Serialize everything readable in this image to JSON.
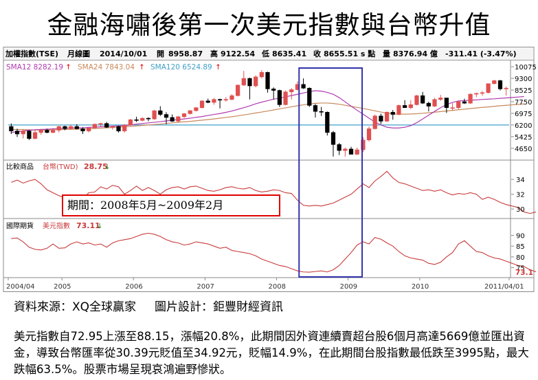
{
  "title": "金融海嘯後第一次美元指數與台幣升值",
  "header": {
    "name": "加權指數(TSE)",
    "period": "月線圖",
    "date": "2014/10/01",
    "open_label": "開",
    "open": "8958.87",
    "high_label": "高",
    "high": "9122.54",
    "low_label": "低",
    "low": "8635.41",
    "close_label": "收",
    "close": "8655.51 s 點",
    "vol_label": "量",
    "volume": "8376.94 億",
    "change": "-311.41 (-3.47%)"
  },
  "legend": {
    "sma12": "SMA12 8282.19",
    "sma24": "SMA24 7843.04",
    "sma120": "SMA120 6524.89"
  },
  "panel2": {
    "label": "比較商品",
    "name": "台幣(TWD)",
    "value": "28.75"
  },
  "panel3": {
    "label": "國際期貨",
    "name": "美元指數",
    "value": "73.11",
    "last": "73.1"
  },
  "period_label": "期間：2008年5月~2009年2月",
  "source_line": "資料來源：XQ全球贏家     圖片設計：鉅豐財經資訊",
  "body_text": "美元指數自72.95上漲至88.15，漲幅20.8%，此期間因外資連續賣超台股6個月高達5669億並匯出資金，導致台幣匯率從30.39元貶值至34.92元，貶幅14.9%，在此期間台股指數最低跌至3995點，最大跌幅63.5%。股票市場呈現哀鴻遍野慘狀。",
  "colors": {
    "up": "#e05050",
    "down": "#000000",
    "sma12": "#b03ab0",
    "sma24": "#c8885a",
    "sma120": "#3fa0c8",
    "line": "#c83a3a",
    "highlight": "#3333aa",
    "period_border": "#e00000"
  },
  "chart_data": [
    {
      "type": "candlestick",
      "title": "加權指數(TSE) 月線圖",
      "x_ticks": [
        "2004/04",
        "2005",
        "2006",
        "2007",
        "2008",
        "2009",
        "2010",
        "2011/04/01"
      ],
      "y_ticks": [
        10075,
        9300,
        8525,
        7750,
        6975,
        6200,
        5425,
        4650
      ],
      "ylim": [
        4000,
        10400
      ],
      "xlim_months": [
        "2004-04",
        "2011-04"
      ],
      "ohlc": [
        [
          "2004-04",
          6100,
          6300,
          5600,
          5800
        ],
        [
          "2004-05",
          5800,
          5950,
          5400,
          5600
        ],
        [
          "2004-06",
          5600,
          5900,
          5300,
          5800
        ],
        [
          "2004-07",
          5800,
          5850,
          5200,
          5300
        ],
        [
          "2004-08",
          5300,
          5900,
          5250,
          5700
        ],
        [
          "2004-09",
          5700,
          5950,
          5550,
          5850
        ],
        [
          "2004-10",
          5850,
          5950,
          5650,
          5700
        ],
        [
          "2004-11",
          5700,
          6000,
          5650,
          5850
        ],
        [
          "2004-12",
          5850,
          6150,
          5700,
          6100
        ],
        [
          "2005-01",
          6100,
          6150,
          5850,
          5950
        ],
        [
          "2005-02",
          5950,
          6200,
          5900,
          6100
        ],
        [
          "2005-03",
          6100,
          6250,
          5900,
          5950
        ],
        [
          "2005-04",
          5950,
          6050,
          5600,
          5800
        ],
        [
          "2005-05",
          5800,
          6050,
          5700,
          6000
        ],
        [
          "2005-06",
          6000,
          6300,
          5950,
          6250
        ],
        [
          "2005-07",
          6250,
          6350,
          6100,
          6300
        ],
        [
          "2005-08",
          6300,
          6400,
          6000,
          6050
        ],
        [
          "2005-09",
          6050,
          6150,
          5900,
          6100
        ],
        [
          "2005-10",
          6100,
          6150,
          5700,
          5800
        ],
        [
          "2005-11",
          5800,
          6250,
          5700,
          6200
        ],
        [
          "2005-12",
          6200,
          6600,
          6150,
          6550
        ],
        [
          "2006-01",
          6550,
          6750,
          6400,
          6500
        ],
        [
          "2006-02",
          6500,
          6700,
          6450,
          6650
        ],
        [
          "2006-03",
          6650,
          6700,
          6450,
          6600
        ],
        [
          "2006-04",
          6600,
          7200,
          6550,
          7150
        ],
        [
          "2006-05",
          7150,
          7450,
          6800,
          6900
        ],
        [
          "2006-06",
          6900,
          7050,
          6250,
          6700
        ],
        [
          "2006-07",
          6700,
          6900,
          6400,
          6450
        ],
        [
          "2006-08",
          6450,
          6800,
          6350,
          6750
        ],
        [
          "2006-09",
          6750,
          7000,
          6650,
          6950
        ],
        [
          "2006-10",
          6950,
          7200,
          6900,
          7150
        ],
        [
          "2006-11",
          7150,
          7400,
          7100,
          7350
        ],
        [
          "2006-12",
          7350,
          7850,
          7300,
          7800
        ],
        [
          "2007-01",
          7800,
          7950,
          7650,
          7700
        ],
        [
          "2007-02",
          7700,
          8000,
          7550,
          7900
        ],
        [
          "2007-03",
          7900,
          7950,
          7300,
          7850
        ],
        [
          "2007-04",
          7850,
          8050,
          7750,
          7900
        ],
        [
          "2007-05",
          7900,
          8250,
          7850,
          8150
        ],
        [
          "2007-06",
          8150,
          8900,
          8100,
          8850
        ],
        [
          "2007-07",
          8850,
          9800,
          8800,
          9300
        ],
        [
          "2007-08",
          9300,
          9350,
          7900,
          8800
        ],
        [
          "2007-09",
          8800,
          9500,
          8700,
          9400
        ],
        [
          "2007-10",
          9400,
          9850,
          9300,
          9700
        ],
        [
          "2007-11",
          9700,
          9750,
          8350,
          8600
        ],
        [
          "2007-12",
          8600,
          8700,
          7900,
          8500
        ],
        [
          "2008-01",
          8500,
          8550,
          7400,
          7550
        ],
        [
          "2008-02",
          7550,
          8500,
          7500,
          8400
        ],
        [
          "2008-03",
          8400,
          8650,
          7900,
          8550
        ],
        [
          "2008-04",
          8550,
          9100,
          8500,
          8900
        ],
        [
          "2008-05",
          8900,
          9300,
          8600,
          8650
        ],
        [
          "2008-06",
          8650,
          8700,
          7400,
          7500
        ],
        [
          "2008-07",
          7500,
          7600,
          6700,
          7100
        ],
        [
          "2008-08",
          7100,
          7400,
          6800,
          7050
        ],
        [
          "2008-09",
          7050,
          7100,
          5500,
          5700
        ],
        [
          "2008-10",
          5700,
          5800,
          4100,
          4900
        ],
        [
          "2008-11",
          4900,
          5000,
          4200,
          4500
        ],
        [
          "2008-12",
          4500,
          4700,
          4100,
          4600
        ],
        [
          "2009-01",
          4600,
          4750,
          4250,
          4250
        ],
        [
          "2009-02",
          4250,
          4700,
          4200,
          4550
        ],
        [
          "2009-03",
          4550,
          5400,
          4400,
          5200
        ],
        [
          "2009-04",
          5200,
          6100,
          5100,
          5950
        ],
        [
          "2009-05",
          5950,
          6900,
          5900,
          6800
        ],
        [
          "2009-06",
          6800,
          6950,
          6250,
          6450
        ],
        [
          "2009-07",
          6450,
          7100,
          6400,
          7050
        ],
        [
          "2009-08",
          7050,
          7200,
          6550,
          6900
        ],
        [
          "2009-09",
          6900,
          7550,
          6850,
          7500
        ],
        [
          "2009-10",
          7500,
          7850,
          7350,
          7350
        ],
        [
          "2009-11",
          7350,
          7850,
          7250,
          7550
        ],
        [
          "2009-12",
          7550,
          8200,
          7500,
          8150
        ],
        [
          "2010-01",
          8150,
          8400,
          7600,
          7650
        ],
        [
          "2010-02",
          7650,
          7750,
          7100,
          7450
        ],
        [
          "2010-03",
          7450,
          8000,
          7400,
          7900
        ],
        [
          "2010-04",
          7900,
          8200,
          7800,
          8000
        ],
        [
          "2010-05",
          8000,
          8000,
          7000,
          7350
        ],
        [
          "2010-06",
          7350,
          7650,
          7150,
          7350
        ],
        [
          "2010-07",
          7350,
          7800,
          7250,
          7750
        ],
        [
          "2010-08",
          7750,
          7950,
          7600,
          7650
        ],
        [
          "2010-09",
          7650,
          8300,
          7600,
          8250
        ],
        [
          "2010-10",
          8250,
          8350,
          8050,
          8300
        ],
        [
          "2010-11",
          8300,
          8450,
          8150,
          8350
        ],
        [
          "2010-12",
          8350,
          8950,
          8300,
          8950
        ],
        [
          "2011-01",
          8950,
          9200,
          8900,
          9150
        ],
        [
          "2011-02",
          9150,
          9200,
          8500,
          8600
        ],
        [
          "2011-03",
          8600,
          8750,
          8150,
          8650
        ]
      ],
      "sma12": [
        5700,
        5750,
        5800,
        5850,
        5880,
        5900,
        5920,
        5940,
        5960,
        5980,
        6000,
        6010,
        6020,
        6040,
        6060,
        6080,
        6100,
        6120,
        6140,
        6160,
        6200,
        6260,
        6300,
        6340,
        6380,
        6420,
        6470,
        6520,
        6560,
        6600,
        6650,
        6710,
        6760,
        6830,
        6900,
        6960,
        7040,
        7130,
        7240,
        7350,
        7470,
        7610,
        7720,
        7820,
        7910,
        7990,
        8070,
        8160,
        8240,
        8330,
        8420,
        8480,
        8450,
        8370,
        8240,
        8020,
        7740,
        7450,
        7180,
        6920,
        6650,
        6400,
        6200,
        6050,
        6000,
        6000,
        6050,
        6150,
        6350,
        6600,
        6850,
        7100,
        7350,
        7550,
        7700,
        7800,
        7820,
        7850,
        7870,
        7900,
        7920,
        7940,
        7970,
        8000,
        8030,
        8060,
        8090
      ],
      "sma24": [
        5900,
        5900,
        5890,
        5880,
        5870,
        5870,
        5870,
        5880,
        5890,
        5900,
        5910,
        5920,
        5930,
        5950,
        5970,
        5990,
        6010,
        6030,
        6060,
        6080,
        6110,
        6140,
        6170,
        6200,
        6230,
        6260,
        6300,
        6340,
        6380,
        6410,
        6440,
        6480,
        6520,
        6560,
        6600,
        6650,
        6700,
        6750,
        6810,
        6870,
        6930,
        7000,
        7060,
        7130,
        7200,
        7270,
        7340,
        7410,
        7480,
        7540,
        7600,
        7640,
        7660,
        7660,
        7630,
        7580,
        7510,
        7440,
        7370,
        7300,
        7220,
        7140,
        7060,
        6990,
        6940,
        6920,
        6920,
        6930,
        6950,
        6980,
        7010,
        7050,
        7090,
        7130,
        7170,
        7210,
        7250,
        7290,
        7330,
        7370,
        7400,
        7440,
        7480,
        7510,
        7540,
        7570,
        7600
      ],
      "sma120_level": 6200
    },
    {
      "type": "line",
      "title": "台幣(TWD)",
      "y_ticks": [
        34,
        32,
        30
      ],
      "ylim": [
        28.9,
        35.4
      ],
      "values": [
        33.6,
        33.9,
        33.5,
        33.8,
        34.0,
        33.4,
        32.6,
        32.2,
        31.8,
        31.5,
        31.7,
        31.8,
        31.3,
        32.2,
        32.3,
        33.0,
        32.7,
        33.2,
        33.0,
        32.0,
        32.5,
        33.1,
        32.5,
        32.9,
        32.5,
        32.0,
        32.6,
        32.9,
        33.0,
        32.7,
        33.0,
        33.1,
        32.8,
        32.5,
        32.4,
        32.6,
        32.9,
        33.0,
        32.8,
        32.7,
        32.9,
        32.5,
        32.3,
        32.4,
        32.6,
        32.5,
        32.2,
        32.1,
        31.2,
        30.5,
        30.4,
        30.5,
        30.4,
        30.6,
        30.8,
        31.2,
        31.6,
        32.0,
        32.7,
        33.4,
        32.9,
        33.8,
        34.4,
        35.1,
        34.2,
        33.6,
        33.4,
        33.1,
        32.8,
        32.5,
        32.6,
        32.4,
        32.6,
        32.2,
        31.9,
        32.1,
        32.0,
        32.2,
        32.0,
        31.3,
        31.6,
        31.3,
        30.9,
        30.6,
        30.4,
        30.2,
        29.6,
        29.4,
        29.6
      ]
    },
    {
      "type": "line",
      "title": "美元指數",
      "y_ticks": [
        90,
        85,
        80,
        75
      ],
      "ylim": [
        71,
        94
      ],
      "values": [
        88.5,
        88.8,
        87.0,
        84.5,
        83.5,
        83.2,
        84.0,
        86.0,
        84.0,
        84.2,
        86.0,
        87.0,
        86.0,
        86.5,
        85.5,
        86.0,
        84.5,
        86.5,
        87.5,
        88.0,
        88.5,
        89.5,
        90.5,
        91.0,
        90.5,
        89.5,
        88.0,
        87.0,
        86.5,
        85.5,
        86.0,
        87.0,
        86.5,
        86.0,
        85.0,
        84.0,
        84.5,
        83.0,
        82.5,
        82.0,
        81.5,
        80.5,
        79.0,
        78.0,
        77.0,
        76.0,
        75.5,
        74.5,
        73.5,
        73.0,
        72.9,
        73.2,
        73.5,
        73.0,
        74.0,
        76.0,
        79.0,
        82.0,
        85.5,
        87.0,
        86.0,
        89.0,
        88.2,
        86.5,
        85.0,
        82.5,
        80.5,
        79.5,
        79.0,
        78.5,
        77.0,
        76.5,
        77.5,
        80.0,
        82.0,
        86.0,
        87.5,
        85.0,
        82.5,
        82.0,
        80.5,
        79.5,
        79.0,
        78.0,
        77.0,
        76.0,
        75.5,
        74.0,
        73.1
      ]
    }
  ]
}
